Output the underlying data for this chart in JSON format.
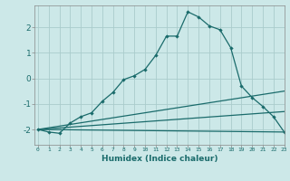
{
  "title": "",
  "xlabel": "Humidex (Indice chaleur)",
  "background_color": "#cce8e8",
  "grid_color": "#aacccc",
  "line_color": "#1a6b6b",
  "x_ticks": [
    0,
    1,
    2,
    3,
    4,
    5,
    6,
    7,
    8,
    9,
    10,
    11,
    12,
    13,
    14,
    15,
    16,
    17,
    18,
    19,
    20,
    21,
    22,
    23
  ],
  "ylim": [
    -2.6,
    2.85
  ],
  "xlim": [
    -0.3,
    23
  ],
  "series": [
    {
      "x": [
        0,
        1,
        2,
        3,
        4,
        5,
        6,
        7,
        8,
        9,
        10,
        11,
        12,
        13,
        14,
        15,
        16,
        17,
        18,
        19,
        20,
        21,
        22,
        23
      ],
      "y": [
        -2.0,
        -2.1,
        -2.15,
        -1.75,
        -1.5,
        -1.35,
        -0.9,
        -0.55,
        -0.05,
        0.1,
        0.35,
        0.9,
        1.65,
        1.65,
        2.6,
        2.4,
        2.05,
        1.9,
        1.2,
        -0.3,
        -0.75,
        -1.1,
        -1.5,
        -2.1
      ],
      "marker": true
    },
    {
      "x": [
        0,
        23
      ],
      "y": [
        -2.0,
        -2.1
      ],
      "marker": false
    },
    {
      "x": [
        0,
        23
      ],
      "y": [
        -2.0,
        -1.3
      ],
      "marker": false
    },
    {
      "x": [
        0,
        23
      ],
      "y": [
        -2.0,
        -0.5
      ],
      "marker": false
    }
  ]
}
